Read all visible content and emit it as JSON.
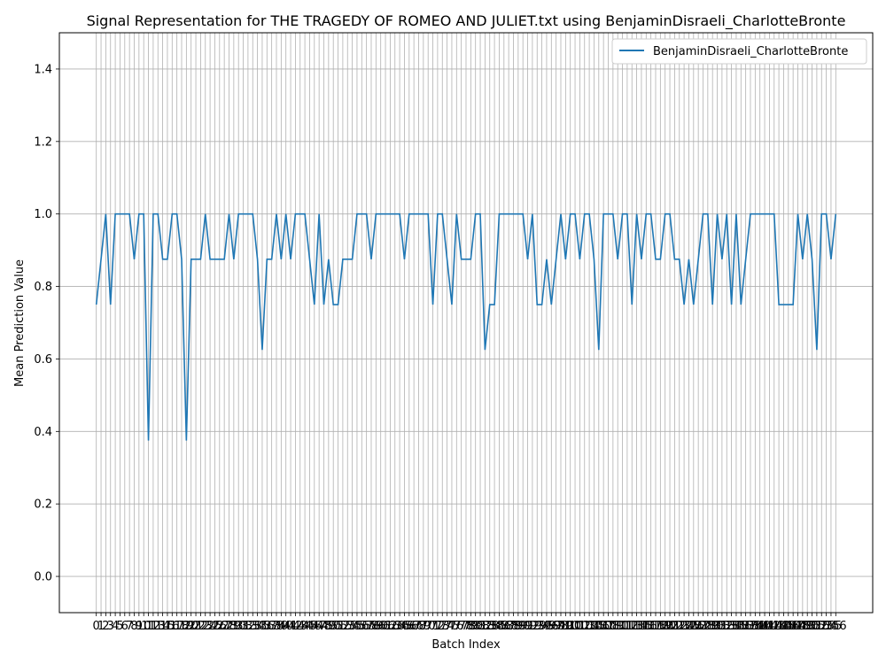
{
  "chart_data": {
    "type": "line",
    "title": "Signal Representation for THE TRAGEDY OF ROMEO AND JULIET.txt using BenjaminDisraeli_CharlotteBronte",
    "xlabel": "Batch Index",
    "ylabel": "Mean Prediction Value",
    "ylim": [
      -0.1,
      1.5
    ],
    "yticks": [
      0.0,
      0.2,
      0.4,
      0.6,
      0.8,
      1.0,
      1.2,
      1.4
    ],
    "grid": true,
    "legend_position": "top-right",
    "line_color": "#1f77b4",
    "series": [
      {
        "name": "BenjaminDisraeli_CharlotteBronte",
        "values": [
          0.75,
          0.875,
          1.0,
          0.75,
          1.0,
          1.0,
          1.0,
          1.0,
          0.875,
          1.0,
          1.0,
          0.375,
          1.0,
          1.0,
          0.875,
          0.875,
          1.0,
          1.0,
          0.875,
          0.375,
          0.875,
          0.875,
          0.875,
          1.0,
          0.875,
          0.875,
          0.875,
          0.875,
          1.0,
          0.875,
          1.0,
          1.0,
          1.0,
          1.0,
          0.875,
          0.625,
          0.875,
          0.875,
          1.0,
          0.875,
          1.0,
          0.875,
          1.0,
          1.0,
          1.0,
          0.875,
          0.75,
          1.0,
          0.75,
          0.875,
          0.75,
          0.75,
          0.875,
          0.875,
          0.875,
          1.0,
          1.0,
          1.0,
          0.875,
          1.0,
          1.0,
          1.0,
          1.0,
          1.0,
          1.0,
          0.875,
          1.0,
          1.0,
          1.0,
          1.0,
          1.0,
          0.75,
          1.0,
          1.0,
          0.875,
          0.75,
          1.0,
          0.875,
          0.875,
          0.875,
          1.0,
          1.0,
          0.625,
          0.75,
          0.75,
          1.0,
          1.0,
          1.0,
          1.0,
          1.0,
          1.0,
          0.875,
          1.0,
          0.75,
          0.75,
          0.875,
          0.75,
          0.875,
          1.0,
          0.875,
          1.0,
          1.0,
          0.875,
          1.0,
          1.0,
          0.875,
          0.625,
          1.0,
          1.0,
          1.0,
          0.875,
          1.0,
          1.0,
          0.75,
          1.0,
          0.875,
          1.0,
          1.0,
          0.875,
          0.875,
          1.0,
          1.0,
          0.875,
          0.875,
          0.75,
          0.875,
          0.75,
          0.875,
          1.0,
          1.0,
          0.75,
          1.0,
          0.875,
          1.0,
          0.75,
          1.0,
          0.75,
          0.875,
          1.0,
          1.0,
          1.0,
          1.0,
          1.0,
          1.0,
          0.75,
          0.75,
          0.75,
          0.75,
          1.0,
          0.875,
          1.0,
          0.875,
          0.625,
          1.0,
          1.0,
          0.875,
          1.0
        ]
      }
    ]
  }
}
